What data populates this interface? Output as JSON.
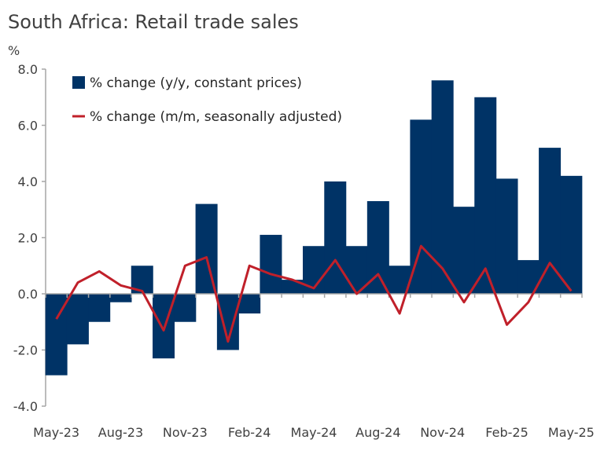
{
  "chart_data": {
    "type": "bar",
    "title": "South Africa: Retail trade sales",
    "ylabel": "%",
    "ylim": [
      -4,
      8
    ],
    "yticks": [
      "-4.0",
      "-2.0",
      "0.0",
      "2.0",
      "4.0",
      "6.0",
      "8.0"
    ],
    "categories": [
      "May-23",
      "Jun-23",
      "Jul-23",
      "Aug-23",
      "Sep-23",
      "Oct-23",
      "Nov-23",
      "Dec-23",
      "Jan-24",
      "Feb-24",
      "Mar-24",
      "Apr-24",
      "May-24",
      "Jun-24",
      "Jul-24",
      "Aug-24",
      "Sep-24",
      "Oct-24",
      "Nov-24",
      "Dec-24",
      "Jan-25",
      "Feb-25",
      "Mar-25",
      "Apr-25",
      "May-25"
    ],
    "xtick_labels": [
      "May-23",
      "Aug-23",
      "Nov-23",
      "Feb-24",
      "May-24",
      "Aug-24",
      "Nov-24",
      "Feb-25",
      "May-25"
    ],
    "legend_position": "top-left",
    "grid": false,
    "series": [
      {
        "name": "% change (y/y, constant prices)",
        "type": "bar",
        "color": "#003366",
        "values": [
          -2.9,
          -1.8,
          -1.0,
          -0.3,
          1.0,
          -2.3,
          -1.0,
          3.2,
          -2.0,
          -0.7,
          2.1,
          0.5,
          1.7,
          4.0,
          1.7,
          3.3,
          1.0,
          6.2,
          7.6,
          3.1,
          7.0,
          4.1,
          1.2,
          5.2,
          4.2
        ]
      },
      {
        "name": "% change (m/m, seasonally adjusted)",
        "type": "line",
        "color": "#C0202A",
        "values": [
          -0.9,
          0.4,
          0.8,
          0.3,
          0.1,
          -1.3,
          1.0,
          1.3,
          -1.7,
          1.0,
          0.7,
          0.5,
          0.2,
          1.2,
          0.0,
          0.7,
          -0.7,
          1.7,
          0.9,
          -0.3,
          0.9,
          -1.1,
          -0.3,
          1.1,
          0.1
        ]
      }
    ]
  }
}
